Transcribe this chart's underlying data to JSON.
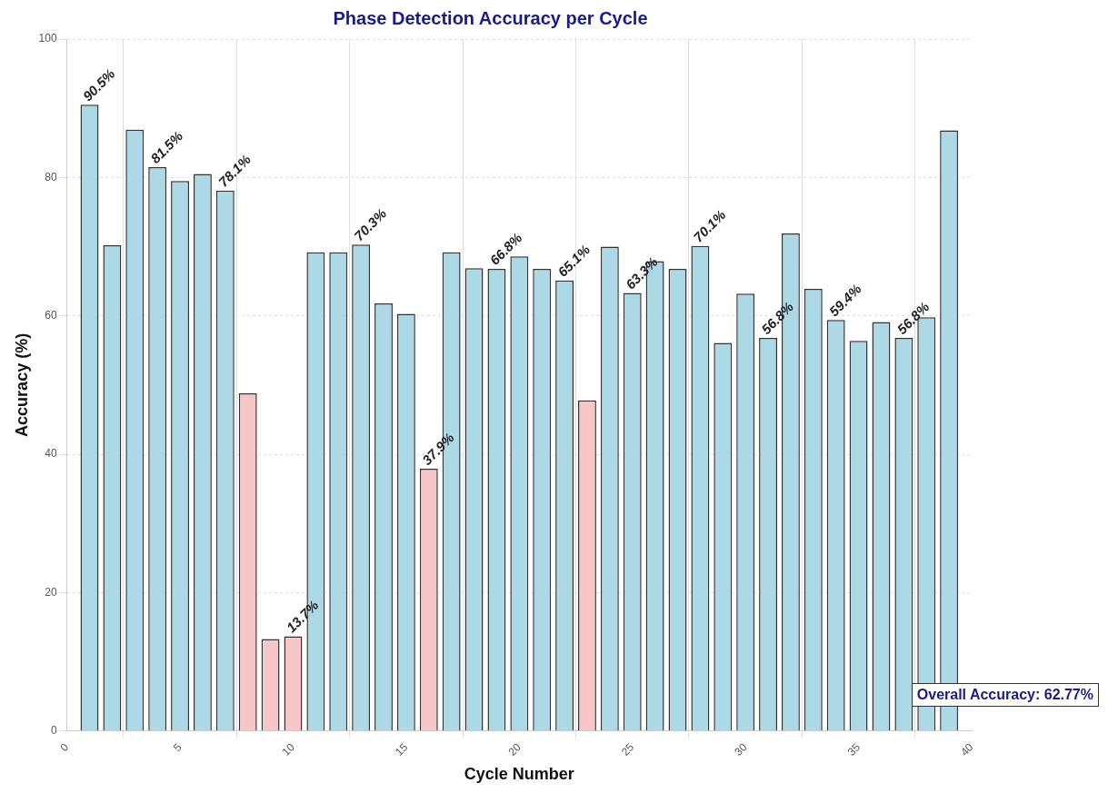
{
  "chart_data": {
    "type": "bar",
    "title": "Phase Detection Accuracy per Cycle",
    "xlabel": "Cycle Number",
    "ylabel": "Accuracy (%)",
    "x": [
      1,
      2,
      3,
      4,
      5,
      6,
      7,
      8,
      9,
      10,
      11,
      12,
      13,
      14,
      15,
      16,
      17,
      18,
      19,
      20,
      21,
      22,
      23,
      24,
      25,
      26,
      27,
      28,
      29,
      30,
      31,
      32,
      33,
      34,
      35,
      36,
      37,
      38,
      39
    ],
    "values": [
      90.5,
      70.2,
      86.9,
      81.5,
      79.5,
      80.5,
      78.1,
      48.8,
      13.3,
      13.7,
      69.2,
      69.2,
      70.3,
      61.8,
      60.3,
      37.9,
      69.2,
      66.9,
      66.8,
      68.6,
      66.8,
      65.1,
      47.8,
      70.0,
      63.3,
      67.9,
      66.8,
      70.1,
      56.1,
      63.2,
      56.8,
      71.9,
      63.9,
      59.4,
      56.4,
      59.1,
      56.8,
      59.8,
      86.8
    ],
    "colors": [
      "#add8e6",
      "#add8e6",
      "#add8e6",
      "#add8e6",
      "#add8e6",
      "#add8e6",
      "#add8e6",
      "#f7c6c7",
      "#f7c6c7",
      "#f7c6c7",
      "#add8e6",
      "#add8e6",
      "#add8e6",
      "#add8e6",
      "#add8e6",
      "#f7c6c7",
      "#add8e6",
      "#add8e6",
      "#add8e6",
      "#add8e6",
      "#add8e6",
      "#add8e6",
      "#f7c6c7",
      "#add8e6",
      "#add8e6",
      "#add8e6",
      "#add8e6",
      "#add8e6",
      "#add8e6",
      "#add8e6",
      "#add8e6",
      "#add8e6",
      "#add8e6",
      "#add8e6",
      "#add8e6",
      "#add8e6",
      "#add8e6",
      "#add8e6",
      "#add8e6"
    ],
    "value_labels": [
      "90.5%",
      null,
      null,
      "81.5%",
      null,
      null,
      "78.1%",
      null,
      null,
      "13.7%",
      null,
      null,
      "70.3%",
      null,
      null,
      "37.9%",
      null,
      null,
      "66.8%",
      null,
      null,
      "65.1%",
      null,
      null,
      "63.3%",
      null,
      null,
      "70.1%",
      null,
      null,
      "56.8%",
      null,
      null,
      "59.4%",
      null,
      null,
      "56.8%",
      null,
      null
    ],
    "xlim": [
      0,
      40
    ],
    "xticks": [
      0,
      5,
      10,
      15,
      20,
      25,
      30,
      35,
      40
    ],
    "ylim": [
      0,
      100
    ],
    "yticks": [
      0,
      20,
      40,
      60,
      80,
      100
    ],
    "grid": true,
    "annotations": [
      "Overall Accuracy: 62.77%"
    ]
  }
}
